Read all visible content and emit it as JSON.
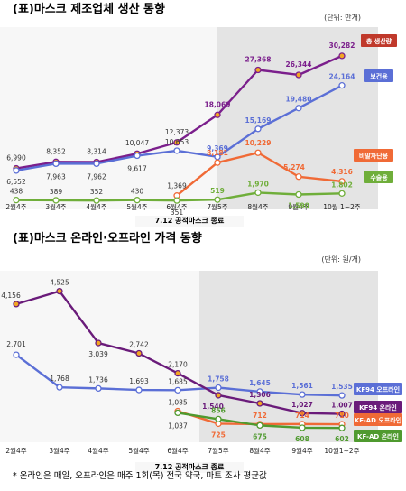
{
  "chart_data": [
    {
      "type": "line",
      "title": "(표)마스크 제조업체 생산 동향",
      "unit": "(단위: 만개)",
      "categories": [
        "2월4주",
        "3월4주",
        "4월4주",
        "5월4주",
        "6월4주",
        "7월5주",
        "8월4주",
        "9월4주",
        "10월 1~2주"
      ],
      "event_label": "7.12 공적마스크 종료",
      "series": [
        {
          "name": "총 생산량",
          "color": "#7b1f8c",
          "badge_color": "#c0392b",
          "values": [
            6990,
            8352,
            8314,
            10047,
            12373,
            18069,
            27368,
            26344,
            30282
          ]
        },
        {
          "name": "보건용",
          "color": "#5b6fd6",
          "badge_color": "#5b6fd6",
          "values": [
            6552,
            7963,
            7962,
            9617,
            10653,
            9369,
            15169,
            19480,
            24164
          ]
        },
        {
          "name": "비말차단용",
          "color": "#f06a36",
          "badge_color": "#f06a36",
          "values": [
            null,
            null,
            null,
            null,
            1369,
            8181,
            10229,
            5274,
            4316
          ]
        },
        {
          "name": "수술용",
          "color": "#6fae3a",
          "badge_color": "#6fae3a",
          "values": [
            438,
            389,
            352,
            430,
            351,
            519,
            1970,
            1590,
            1802
          ]
        }
      ],
      "labels": [
        [
          "6,990",
          "8,352",
          "8,314",
          "10,047",
          "12,373",
          "18,069",
          "27,368",
          "26,344",
          "30,282"
        ],
        [
          "6,552",
          "7,963",
          "7,962",
          "9,617",
          "10,653",
          "9,369",
          "15,169",
          "19,480",
          "24,164"
        ],
        [
          "",
          "",
          "",
          "",
          "1,369",
          "8,181",
          "10,229",
          "5,274",
          "4,316"
        ],
        [
          "438",
          "389",
          "352",
          "430",
          "351",
          "519",
          "1,970",
          "1,590",
          "1,802"
        ]
      ]
    },
    {
      "type": "line",
      "title": "(표)마스크 온라인·오프라인 가격 동향",
      "unit": "(단위: 원/개)",
      "categories": [
        "2월4주",
        "3월4주",
        "4월4주",
        "5월4주",
        "6월4주",
        "7월5주",
        "8월4주",
        "9월4주",
        "10월1~2주"
      ],
      "event_label": "7.12 공적마스크 종료",
      "series": [
        {
          "name": "KF94 오프라인",
          "color": "#5b6fd6",
          "badge_color": "#5b6fd6",
          "values": [
            2701,
            1768,
            1736,
            1693,
            1685,
            1758,
            1645,
            1561,
            1535
          ]
        },
        {
          "name": "KF94 온라인",
          "color": "#6a1b7a",
          "badge_color": "#6a1b7a",
          "values": [
            4156,
            4525,
            3039,
            2742,
            2170,
            1540,
            1306,
            1027,
            1007
          ]
        },
        {
          "name": "KF-AD 오프라인",
          "color": "#f06a36",
          "badge_color": "#f06a36",
          "values": [
            null,
            null,
            null,
            null,
            1085,
            725,
            712,
            714,
            710
          ]
        },
        {
          "name": "KF-AD 온라인",
          "color": "#4f9a2f",
          "badge_color": "#4f9a2f",
          "values": [
            null,
            null,
            null,
            null,
            1037,
            856,
            675,
            608,
            602
          ]
        }
      ],
      "labels": [
        [
          "2,701",
          "1,768",
          "1,736",
          "1,693",
          "1,685",
          "1,758",
          "1,645",
          "1,561",
          "1,535"
        ],
        [
          "4,156",
          "4,525",
          "3,039",
          "2,742",
          "2,170",
          "1,540",
          "1,306",
          "1,027",
          "1,007"
        ],
        [
          "",
          "",
          "",
          "",
          "1,085",
          "725",
          "712",
          "714",
          "710"
        ],
        [
          "",
          "",
          "",
          "",
          "1,037",
          "856",
          "675",
          "608",
          "602"
        ]
      ]
    }
  ],
  "footnote": "* 온라인은 매일, 오프라인은 매주 1회(목) 전국 약국, 마트 조사 평균값"
}
